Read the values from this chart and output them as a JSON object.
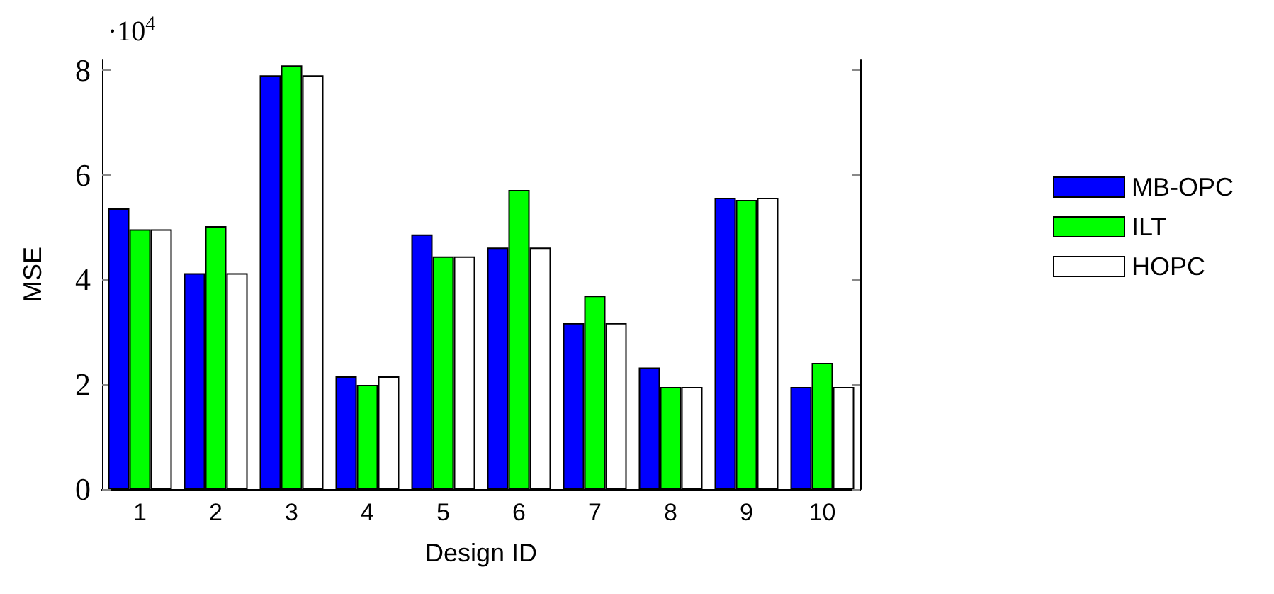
{
  "chart_data": {
    "type": "bar",
    "xlabel": "Design ID",
    "ylabel": "MSE",
    "annotations": [
      "·10$^{4}$"
    ],
    "categories": [
      "1",
      "2",
      "3",
      "4",
      "5",
      "6",
      "7",
      "8",
      "9",
      "10"
    ],
    "series": [
      {
        "name": "MB-OPC",
        "color": "#0000ff",
        "values": [
          5.36,
          4.12,
          7.9,
          2.15,
          4.86,
          4.61,
          3.17,
          2.32,
          5.56,
          1.95
        ]
      },
      {
        "name": "ILT",
        "color": "#00ff00",
        "values": [
          4.96,
          5.02,
          8.09,
          1.99,
          4.44,
          5.71,
          3.69,
          1.95,
          5.52,
          2.41
        ]
      },
      {
        "name": "HOPC",
        "color": "#ffffff",
        "values": [
          4.96,
          4.12,
          7.9,
          2.15,
          4.44,
          4.61,
          3.17,
          1.95,
          5.56,
          1.95
        ]
      }
    ],
    "ylim": [
      0,
      8.2
    ],
    "yticks": [
      0,
      2,
      4,
      6,
      8
    ],
    "grid": false,
    "legend": "right"
  }
}
